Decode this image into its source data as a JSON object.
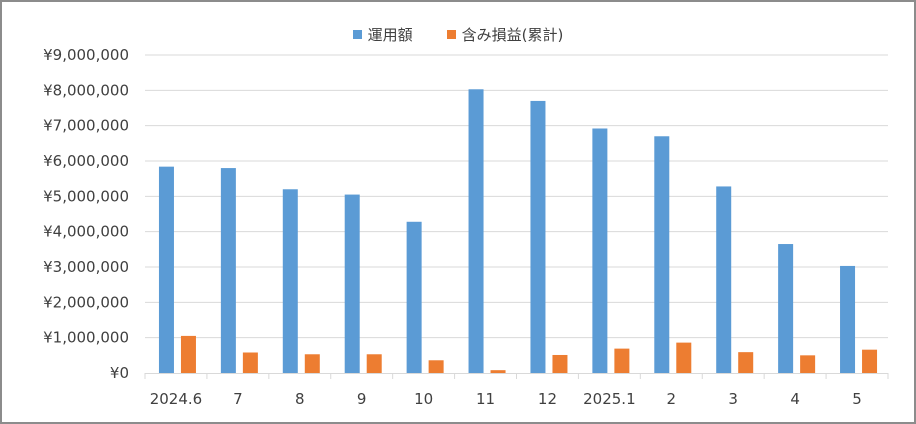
{
  "chart_data": {
    "type": "bar",
    "title": "",
    "xlabel": "",
    "ylabel": "",
    "categories": [
      "2024.6",
      "7",
      "8",
      "9",
      "10",
      "11",
      "12",
      "2025.1",
      "2",
      "3",
      "4",
      "5"
    ],
    "series": [
      {
        "name": "運用額",
        "color": "#5b9bd5",
        "values": [
          5840000,
          5800000,
          5200000,
          5050000,
          4280000,
          8030000,
          7700000,
          6920000,
          6700000,
          5280000,
          3650000,
          3030000
        ]
      },
      {
        "name": "含み損益(累計)",
        "color": "#ed7d31",
        "values": [
          1050000,
          580000,
          530000,
          530000,
          360000,
          80000,
          510000,
          690000,
          860000,
          590000,
          500000,
          660000
        ]
      }
    ],
    "ylim": [
      0,
      9000000
    ],
    "ytick_step": 1000000,
    "ytick_labels": [
      "¥0",
      "¥1,000,000",
      "¥2,000,000",
      "¥3,000,000",
      "¥4,000,000",
      "¥5,000,000",
      "¥6,000,000",
      "¥7,000,000",
      "¥8,000,000",
      "¥9,000,000"
    ],
    "grid": true,
    "legend_position": "top-center"
  }
}
